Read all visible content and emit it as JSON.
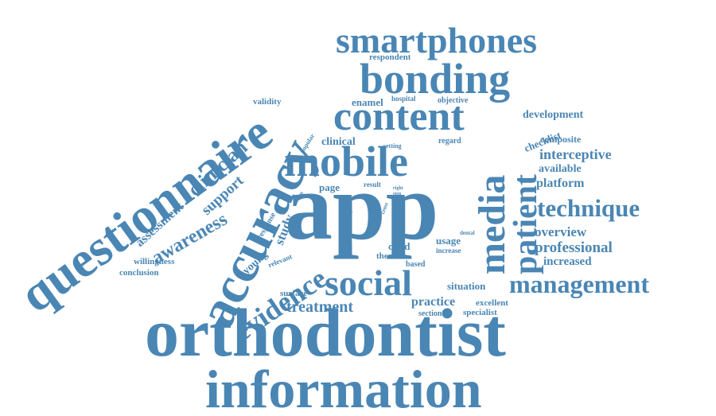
{
  "color": "#4a86b4",
  "words": [
    {
      "text": "information",
      "weight": 100
    },
    {
      "text": "orthodontist",
      "weight": 98
    },
    {
      "text": "app",
      "weight": 95
    },
    {
      "text": "questionnaire",
      "weight": 88
    },
    {
      "text": "accuracy",
      "weight": 80
    },
    {
      "text": "mobile",
      "weight": 70
    },
    {
      "text": "bonding",
      "weight": 65
    },
    {
      "text": "content",
      "weight": 62
    },
    {
      "text": "social",
      "weight": 60
    },
    {
      "text": "media",
      "weight": 58
    },
    {
      "text": "smartphones",
      "weight": 55
    },
    {
      "text": "patient",
      "weight": 52
    },
    {
      "text": "evidence",
      "weight": 48
    },
    {
      "text": "management",
      "weight": 40
    },
    {
      "text": "technique",
      "weight": 38
    },
    {
      "text": "clinician",
      "weight": 33
    },
    {
      "text": "awareness",
      "weight": 30
    },
    {
      "text": "treatment",
      "weight": 26
    },
    {
      "text": "professional",
      "weight": 24
    },
    {
      "text": "support",
      "weight": 23
    },
    {
      "text": "interceptive",
      "weight": 22
    },
    {
      "text": "overview",
      "weight": 21
    },
    {
      "text": "study",
      "weight": 21
    },
    {
      "text": "practice",
      "weight": 20
    },
    {
      "text": "platform",
      "weight": 20
    },
    {
      "text": "assessment",
      "weight": 20
    },
    {
      "text": "increased",
      "weight": 19
    },
    {
      "text": "development",
      "weight": 18
    },
    {
      "text": "available",
      "weight": 18
    },
    {
      "text": "clinical",
      "weight": 17
    },
    {
      "text": "enamel",
      "weight": 17
    },
    {
      "text": "situation",
      "weight": 17
    },
    {
      "text": "checklist",
      "weight": 17
    },
    {
      "text": "young",
      "weight": 16
    },
    {
      "text": "child",
      "weight": 16
    },
    {
      "text": "usage",
      "weight": 16
    },
    {
      "text": "page",
      "weight": 16
    },
    {
      "text": "composite",
      "weight": 15
    },
    {
      "text": "validity",
      "weight": 15
    },
    {
      "text": "specialist",
      "weight": 15
    },
    {
      "text": "willingness",
      "weight": 14
    },
    {
      "text": "conclusion",
      "weight": 14
    },
    {
      "text": "excellent",
      "weight": 14
    },
    {
      "text": "surface",
      "weight": 14
    },
    {
      "text": "respondent",
      "weight": 14
    },
    {
      "text": "theme",
      "weight": 14
    },
    {
      "text": "sectional",
      "weight": 13
    },
    {
      "text": "most",
      "weight": 13
    },
    {
      "text": "regard",
      "weight": 13
    },
    {
      "text": "objective",
      "weight": 13
    },
    {
      "text": "response",
      "weight": 13
    },
    {
      "text": "based",
      "weight": 12
    },
    {
      "text": "hospital",
      "weight": 12
    },
    {
      "text": "result",
      "weight": 11
    },
    {
      "text": "increase",
      "weight": 11
    },
    {
      "text": "relevant",
      "weight": 11
    },
    {
      "text": "popular",
      "weight": 10
    },
    {
      "text": "setting",
      "weight": 10
    },
    {
      "text": "method",
      "weight": 10
    },
    {
      "text": "cross",
      "weight": 9
    },
    {
      "text": "dental",
      "weight": 9
    },
    {
      "text": "design",
      "weight": 9
    },
    {
      "text": "step",
      "weight": 8
    },
    {
      "text": "right",
      "weight": 8
    },
    {
      "text": "use",
      "weight": 8
    }
  ]
}
